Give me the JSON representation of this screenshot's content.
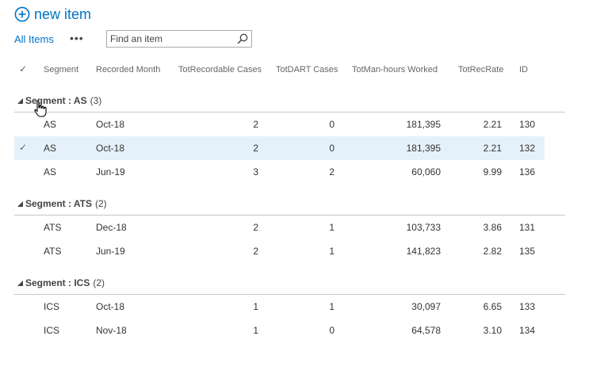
{
  "toolbar": {
    "new_item_label": "new item",
    "view_label": "All Items",
    "more_label": "•••",
    "search_placeholder": "Find an item"
  },
  "columns": {
    "check": "✓",
    "segment": "Segment",
    "month": "Recorded Month",
    "recordable": "TotRecordable Cases",
    "dart": "TotDART Cases",
    "hours": "TotMan-hours Worked",
    "rate": "TotRecRate",
    "id": "ID"
  },
  "groups": [
    {
      "title": "Segment : AS",
      "count": "(3)",
      "rows": [
        {
          "segment": "AS",
          "month": "Oct-18",
          "recordable": "2",
          "dart": "0",
          "hours": "181,395",
          "rate": "2.21",
          "id": "130",
          "selected": false
        },
        {
          "segment": "AS",
          "month": "Oct-18",
          "recordable": "2",
          "dart": "0",
          "hours": "181,395",
          "rate": "2.21",
          "id": "132",
          "selected": true
        },
        {
          "segment": "AS",
          "month": "Jun-19",
          "recordable": "3",
          "dart": "2",
          "hours": "60,060",
          "rate": "9.99",
          "id": "136",
          "selected": false
        }
      ]
    },
    {
      "title": "Segment : ATS",
      "count": "(2)",
      "rows": [
        {
          "segment": "ATS",
          "month": "Dec-18",
          "recordable": "2",
          "dart": "1",
          "hours": "103,733",
          "rate": "3.86",
          "id": "131",
          "selected": false
        },
        {
          "segment": "ATS",
          "month": "Jun-19",
          "recordable": "2",
          "dart": "1",
          "hours": "141,823",
          "rate": "2.82",
          "id": "135",
          "selected": false
        }
      ]
    },
    {
      "title": "Segment : ICS",
      "count": "(2)",
      "rows": [
        {
          "segment": "ICS",
          "month": "Oct-18",
          "recordable": "1",
          "dart": "1",
          "hours": "30,097",
          "rate": "6.65",
          "id": "133",
          "selected": false
        },
        {
          "segment": "ICS",
          "month": "Nov-18",
          "recordable": "1",
          "dart": "0",
          "hours": "64,578",
          "rate": "3.10",
          "id": "134",
          "selected": false
        }
      ]
    }
  ],
  "colors": {
    "link": "#0072c6",
    "selected_row": "#e5f1fa",
    "divider": "#c6c6c6"
  },
  "icons": {
    "new_item": "plus-circle-icon",
    "search": "search-icon",
    "group_toggle": "collapse-triangle-icon",
    "pointer": "hand-cursor-icon"
  }
}
